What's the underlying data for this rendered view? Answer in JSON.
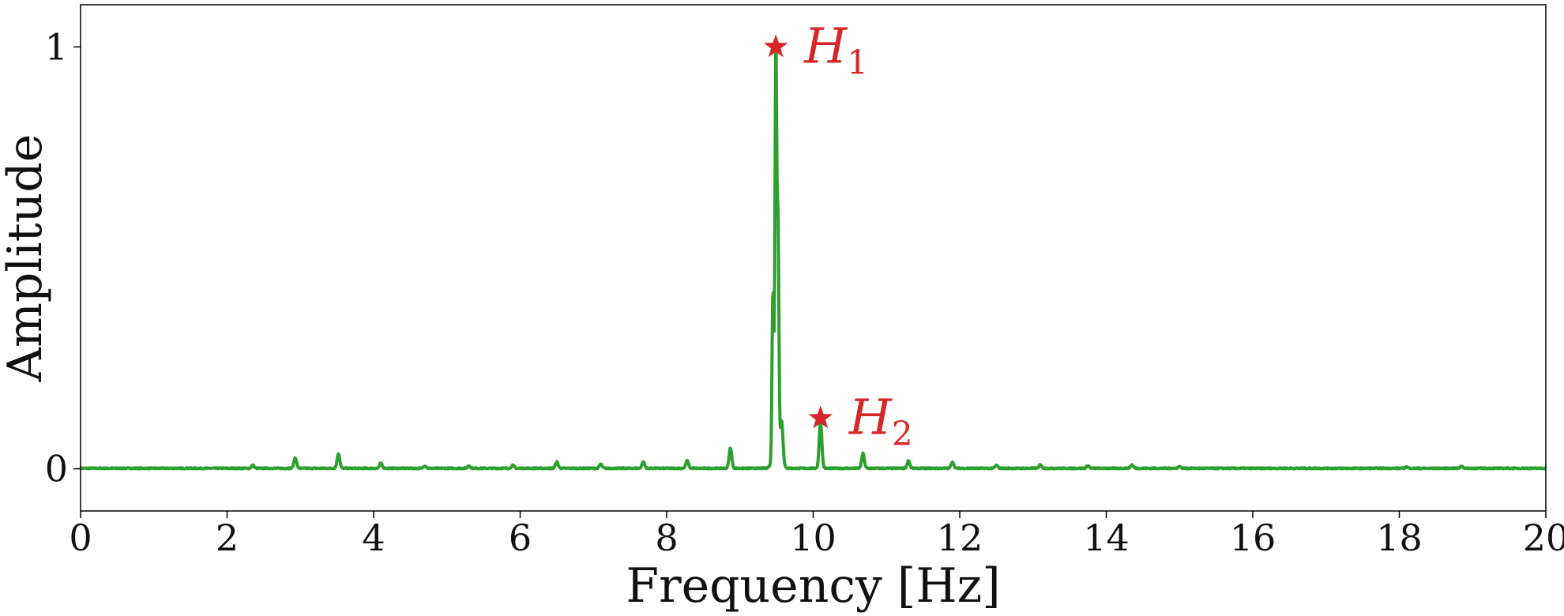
{
  "chart_data": {
    "type": "line",
    "title": "",
    "xlabel": "Frequency [Hz]",
    "ylabel": "Amplitude",
    "xlim": [
      0,
      20
    ],
    "ylim": [
      -0.1,
      1.1
    ],
    "xticks": [
      0,
      2,
      4,
      6,
      8,
      10,
      12,
      14,
      16,
      18,
      20
    ],
    "yticks": [
      0,
      1
    ],
    "grid": false,
    "legend": "none",
    "line_color": "#2ca02c",
    "marker_color": "#d62728",
    "baseline": 0.0,
    "peaks": [
      {
        "x": 2.35,
        "y": 0.007
      },
      {
        "x": 2.93,
        "y": 0.025
      },
      {
        "x": 3.52,
        "y": 0.035
      },
      {
        "x": 4.1,
        "y": 0.012
      },
      {
        "x": 4.7,
        "y": 0.006
      },
      {
        "x": 5.3,
        "y": 0.006
      },
      {
        "x": 5.9,
        "y": 0.007
      },
      {
        "x": 6.5,
        "y": 0.015
      },
      {
        "x": 7.1,
        "y": 0.01
      },
      {
        "x": 7.68,
        "y": 0.015
      },
      {
        "x": 8.28,
        "y": 0.018
      },
      {
        "x": 8.87,
        "y": 0.048
      },
      {
        "x": 9.45,
        "y": 0.4
      },
      {
        "x": 9.49,
        "y": 0.96
      },
      {
        "x": 9.52,
        "y": 0.54
      },
      {
        "x": 9.57,
        "y": 0.1
      },
      {
        "x": 10.1,
        "y": 0.11
      },
      {
        "x": 10.68,
        "y": 0.035
      },
      {
        "x": 11.3,
        "y": 0.018
      },
      {
        "x": 11.9,
        "y": 0.015
      },
      {
        "x": 12.5,
        "y": 0.007
      },
      {
        "x": 13.1,
        "y": 0.008
      },
      {
        "x": 13.75,
        "y": 0.006
      },
      {
        "x": 14.35,
        "y": 0.008
      },
      {
        "x": 15.0,
        "y": 0.004
      },
      {
        "x": 18.1,
        "y": 0.003
      },
      {
        "x": 18.85,
        "y": 0.005
      }
    ],
    "annotations": [
      {
        "label": "H",
        "sub": "1",
        "x": 9.49,
        "y": 1.0
      },
      {
        "label": "H",
        "sub": "2",
        "x": 10.1,
        "y": 0.12
      }
    ]
  }
}
